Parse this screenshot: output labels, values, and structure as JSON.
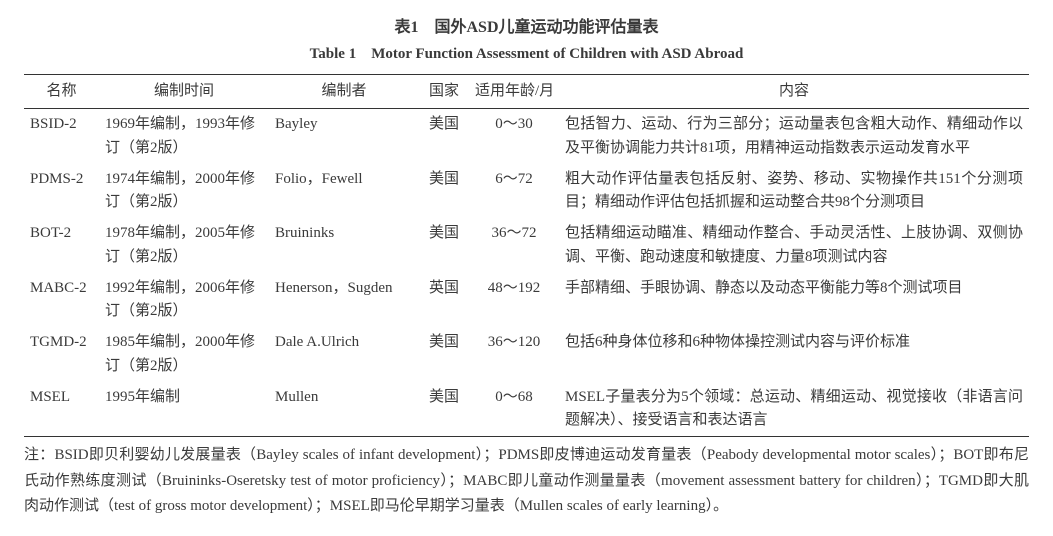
{
  "title_zh": "表1　国外ASD儿童运动功能评估量表",
  "title_en": "Table 1　Motor Function Assessment of Children with ASD Abroad",
  "columns": [
    "名称",
    "编制时间",
    "编制者",
    "国家",
    "适用年龄/月",
    "内容"
  ],
  "rows": [
    {
      "name": "BSID-2",
      "date": "1969年编制，1993年修订（第2版）",
      "author": "Bayley",
      "country": "美国",
      "age": "0～30",
      "content": "包括智力、运动、行为三部分；运动量表包含粗大动作、精细动作以及平衡协调能力共计81项，用精神运动指数表示运动发育水平"
    },
    {
      "name": "PDMS-2",
      "date": "1974年编制，2000年修订（第2版）",
      "author": "Folio，Fewell",
      "country": "美国",
      "age": "6～72",
      "content": "粗大动作评估量表包括反射、姿势、移动、实物操作共151个分测项目；精细动作评估包括抓握和运动整合共98个分测项目"
    },
    {
      "name": "BOT-2",
      "date": "1978年编制，2005年修订（第2版）",
      "author": "Bruininks",
      "country": "美国",
      "age": "36～72",
      "content": "包括精细运动瞄准、精细动作整合、手动灵活性、上肢协调、双侧协调、平衡、跑动速度和敏捷度、力量8项测试内容"
    },
    {
      "name": "MABC-2",
      "date": "1992年编制，2006年修订（第2版）",
      "author": "Henerson，Sugden",
      "country": "英国",
      "age": "48～192",
      "content": "手部精细、手眼协调、静态以及动态平衡能力等8个测试项目"
    },
    {
      "name": "TGMD-2",
      "date": "1985年编制，2000年修订（第2版）",
      "author": "Dale A.Ulrich",
      "country": "美国",
      "age": "36～120",
      "content": "包括6种身体位移和6种物体操控测试内容与评价标准"
    },
    {
      "name": "MSEL",
      "date": "1995年编制",
      "author": "Mullen",
      "country": "美国",
      "age": "0～68",
      "content": "MSEL子量表分为5个领域：总运动、精细运动、视觉接收（非语言问题解决）、接受语言和表达语言"
    }
  ],
  "note": "注：BSID即贝利婴幼儿发展量表（Bayley scales of infant development）；PDMS即皮博迪运动发育量表（Peabody developmental motor scales）；BOT即布尼氏动作熟练度测试（Bruininks-Oseretsky test of motor proficiency）；MABC即儿童动作测量量表（movement assessment battery for children）；TGMD即大肌肉动作测试（test of gross motor development）；MSEL即马伦早期学习量表（Mullen scales of early learning）。"
}
